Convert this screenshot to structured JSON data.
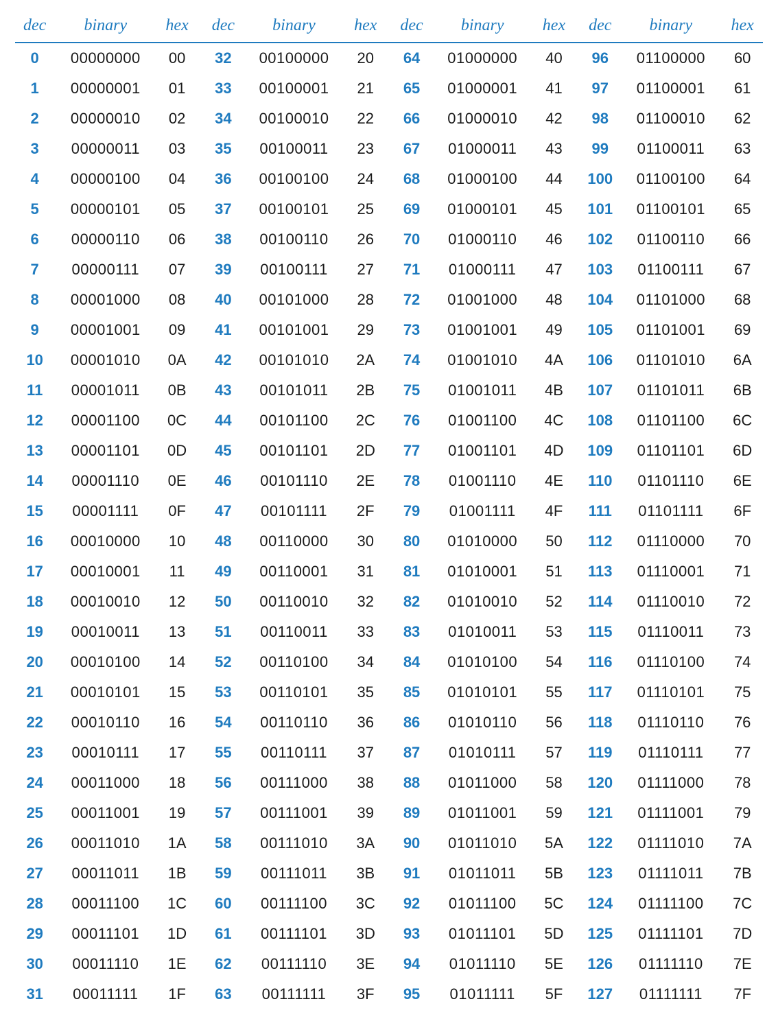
{
  "table": {
    "type": "table",
    "background_color": "#ffffff",
    "header_text_color": "#1f7bbf",
    "header_border_color": "#1f7bbf",
    "header_font_style": "italic",
    "header_font_family": "serif",
    "header_fontsize_pt": 18,
    "body_fontsize_pt": 16,
    "dec_text_color": "#1f7bbf",
    "dec_font_weight": "600",
    "data_text_color": "#1a1a1a",
    "column_groups": 4,
    "rows_per_group": 32,
    "headers": {
      "dec": "dec",
      "binary": "binary",
      "hex": "hex"
    },
    "groups": [
      {
        "rows": [
          {
            "dec": "0",
            "bin": "00000000",
            "hex": "00"
          },
          {
            "dec": "1",
            "bin": "00000001",
            "hex": "01"
          },
          {
            "dec": "2",
            "bin": "00000010",
            "hex": "02"
          },
          {
            "dec": "3",
            "bin": "00000011",
            "hex": "03"
          },
          {
            "dec": "4",
            "bin": "00000100",
            "hex": "04"
          },
          {
            "dec": "5",
            "bin": "00000101",
            "hex": "05"
          },
          {
            "dec": "6",
            "bin": "00000110",
            "hex": "06"
          },
          {
            "dec": "7",
            "bin": "00000111",
            "hex": "07"
          },
          {
            "dec": "8",
            "bin": "00001000",
            "hex": "08"
          },
          {
            "dec": "9",
            "bin": "00001001",
            "hex": "09"
          },
          {
            "dec": "10",
            "bin": "00001010",
            "hex": "0A"
          },
          {
            "dec": "11",
            "bin": "00001011",
            "hex": "0B"
          },
          {
            "dec": "12",
            "bin": "00001100",
            "hex": "0C"
          },
          {
            "dec": "13",
            "bin": "00001101",
            "hex": "0D"
          },
          {
            "dec": "14",
            "bin": "00001110",
            "hex": "0E"
          },
          {
            "dec": "15",
            "bin": "00001111",
            "hex": "0F"
          },
          {
            "dec": "16",
            "bin": "00010000",
            "hex": "10"
          },
          {
            "dec": "17",
            "bin": "00010001",
            "hex": "11"
          },
          {
            "dec": "18",
            "bin": "00010010",
            "hex": "12"
          },
          {
            "dec": "19",
            "bin": "00010011",
            "hex": "13"
          },
          {
            "dec": "20",
            "bin": "00010100",
            "hex": "14"
          },
          {
            "dec": "21",
            "bin": "00010101",
            "hex": "15"
          },
          {
            "dec": "22",
            "bin": "00010110",
            "hex": "16"
          },
          {
            "dec": "23",
            "bin": "00010111",
            "hex": "17"
          },
          {
            "dec": "24",
            "bin": "00011000",
            "hex": "18"
          },
          {
            "dec": "25",
            "bin": "00011001",
            "hex": "19"
          },
          {
            "dec": "26",
            "bin": "00011010",
            "hex": "1A"
          },
          {
            "dec": "27",
            "bin": "00011011",
            "hex": "1B"
          },
          {
            "dec": "28",
            "bin": "00011100",
            "hex": "1C"
          },
          {
            "dec": "29",
            "bin": "00011101",
            "hex": "1D"
          },
          {
            "dec": "30",
            "bin": "00011110",
            "hex": "1E"
          },
          {
            "dec": "31",
            "bin": "00011111",
            "hex": "1F"
          }
        ]
      },
      {
        "rows": [
          {
            "dec": "32",
            "bin": "00100000",
            "hex": "20"
          },
          {
            "dec": "33",
            "bin": "00100001",
            "hex": "21"
          },
          {
            "dec": "34",
            "bin": "00100010",
            "hex": "22"
          },
          {
            "dec": "35",
            "bin": "00100011",
            "hex": "23"
          },
          {
            "dec": "36",
            "bin": "00100100",
            "hex": "24"
          },
          {
            "dec": "37",
            "bin": "00100101",
            "hex": "25"
          },
          {
            "dec": "38",
            "bin": "00100110",
            "hex": "26"
          },
          {
            "dec": "39",
            "bin": "00100111",
            "hex": "27"
          },
          {
            "dec": "40",
            "bin": "00101000",
            "hex": "28"
          },
          {
            "dec": "41",
            "bin": "00101001",
            "hex": "29"
          },
          {
            "dec": "42",
            "bin": "00101010",
            "hex": "2A"
          },
          {
            "dec": "43",
            "bin": "00101011",
            "hex": "2B"
          },
          {
            "dec": "44",
            "bin": "00101100",
            "hex": "2C"
          },
          {
            "dec": "45",
            "bin": "00101101",
            "hex": "2D"
          },
          {
            "dec": "46",
            "bin": "00101110",
            "hex": "2E"
          },
          {
            "dec": "47",
            "bin": "00101111",
            "hex": "2F"
          },
          {
            "dec": "48",
            "bin": "00110000",
            "hex": "30"
          },
          {
            "dec": "49",
            "bin": "00110001",
            "hex": "31"
          },
          {
            "dec": "50",
            "bin": "00110010",
            "hex": "32"
          },
          {
            "dec": "51",
            "bin": "00110011",
            "hex": "33"
          },
          {
            "dec": "52",
            "bin": "00110100",
            "hex": "34"
          },
          {
            "dec": "53",
            "bin": "00110101",
            "hex": "35"
          },
          {
            "dec": "54",
            "bin": "00110110",
            "hex": "36"
          },
          {
            "dec": "55",
            "bin": "00110111",
            "hex": "37"
          },
          {
            "dec": "56",
            "bin": "00111000",
            "hex": "38"
          },
          {
            "dec": "57",
            "bin": "00111001",
            "hex": "39"
          },
          {
            "dec": "58",
            "bin": "00111010",
            "hex": "3A"
          },
          {
            "dec": "59",
            "bin": "00111011",
            "hex": "3B"
          },
          {
            "dec": "60",
            "bin": "00111100",
            "hex": "3C"
          },
          {
            "dec": "61",
            "bin": "00111101",
            "hex": "3D"
          },
          {
            "dec": "62",
            "bin": "00111110",
            "hex": "3E"
          },
          {
            "dec": "63",
            "bin": "00111111",
            "hex": "3F"
          }
        ]
      },
      {
        "rows": [
          {
            "dec": "64",
            "bin": "01000000",
            "hex": "40"
          },
          {
            "dec": "65",
            "bin": "01000001",
            "hex": "41"
          },
          {
            "dec": "66",
            "bin": "01000010",
            "hex": "42"
          },
          {
            "dec": "67",
            "bin": "01000011",
            "hex": "43"
          },
          {
            "dec": "68",
            "bin": "01000100",
            "hex": "44"
          },
          {
            "dec": "69",
            "bin": "01000101",
            "hex": "45"
          },
          {
            "dec": "70",
            "bin": "01000110",
            "hex": "46"
          },
          {
            "dec": "71",
            "bin": "01000111",
            "hex": "47"
          },
          {
            "dec": "72",
            "bin": "01001000",
            "hex": "48"
          },
          {
            "dec": "73",
            "bin": "01001001",
            "hex": "49"
          },
          {
            "dec": "74",
            "bin": "01001010",
            "hex": "4A"
          },
          {
            "dec": "75",
            "bin": "01001011",
            "hex": "4B"
          },
          {
            "dec": "76",
            "bin": "01001100",
            "hex": "4C"
          },
          {
            "dec": "77",
            "bin": "01001101",
            "hex": "4D"
          },
          {
            "dec": "78",
            "bin": "01001110",
            "hex": "4E"
          },
          {
            "dec": "79",
            "bin": "01001111",
            "hex": "4F"
          },
          {
            "dec": "80",
            "bin": "01010000",
            "hex": "50"
          },
          {
            "dec": "81",
            "bin": "01010001",
            "hex": "51"
          },
          {
            "dec": "82",
            "bin": "01010010",
            "hex": "52"
          },
          {
            "dec": "83",
            "bin": "01010011",
            "hex": "53"
          },
          {
            "dec": "84",
            "bin": "01010100",
            "hex": "54"
          },
          {
            "dec": "85",
            "bin": "01010101",
            "hex": "55"
          },
          {
            "dec": "86",
            "bin": "01010110",
            "hex": "56"
          },
          {
            "dec": "87",
            "bin": "01010111",
            "hex": "57"
          },
          {
            "dec": "88",
            "bin": "01011000",
            "hex": "58"
          },
          {
            "dec": "89",
            "bin": "01011001",
            "hex": "59"
          },
          {
            "dec": "90",
            "bin": "01011010",
            "hex": "5A"
          },
          {
            "dec": "91",
            "bin": "01011011",
            "hex": "5B"
          },
          {
            "dec": "92",
            "bin": "01011100",
            "hex": "5C"
          },
          {
            "dec": "93",
            "bin": "01011101",
            "hex": "5D"
          },
          {
            "dec": "94",
            "bin": "01011110",
            "hex": "5E"
          },
          {
            "dec": "95",
            "bin": "01011111",
            "hex": "5F"
          }
        ]
      },
      {
        "rows": [
          {
            "dec": "96",
            "bin": "01100000",
            "hex": "60"
          },
          {
            "dec": "97",
            "bin": "01100001",
            "hex": "61"
          },
          {
            "dec": "98",
            "bin": "01100010",
            "hex": "62"
          },
          {
            "dec": "99",
            "bin": "01100011",
            "hex": "63"
          },
          {
            "dec": "100",
            "bin": "01100100",
            "hex": "64"
          },
          {
            "dec": "101",
            "bin": "01100101",
            "hex": "65"
          },
          {
            "dec": "102",
            "bin": "01100110",
            "hex": "66"
          },
          {
            "dec": "103",
            "bin": "01100111",
            "hex": "67"
          },
          {
            "dec": "104",
            "bin": "01101000",
            "hex": "68"
          },
          {
            "dec": "105",
            "bin": "01101001",
            "hex": "69"
          },
          {
            "dec": "106",
            "bin": "01101010",
            "hex": "6A"
          },
          {
            "dec": "107",
            "bin": "01101011",
            "hex": "6B"
          },
          {
            "dec": "108",
            "bin": "01101100",
            "hex": "6C"
          },
          {
            "dec": "109",
            "bin": "01101101",
            "hex": "6D"
          },
          {
            "dec": "110",
            "bin": "01101110",
            "hex": "6E"
          },
          {
            "dec": "111",
            "bin": "01101111",
            "hex": "6F"
          },
          {
            "dec": "112",
            "bin": "01110000",
            "hex": "70"
          },
          {
            "dec": "113",
            "bin": "01110001",
            "hex": "71"
          },
          {
            "dec": "114",
            "bin": "01110010",
            "hex": "72"
          },
          {
            "dec": "115",
            "bin": "01110011",
            "hex": "73"
          },
          {
            "dec": "116",
            "bin": "01110100",
            "hex": "74"
          },
          {
            "dec": "117",
            "bin": "01110101",
            "hex": "75"
          },
          {
            "dec": "118",
            "bin": "01110110",
            "hex": "76"
          },
          {
            "dec": "119",
            "bin": "01110111",
            "hex": "77"
          },
          {
            "dec": "120",
            "bin": "01111000",
            "hex": "78"
          },
          {
            "dec": "121",
            "bin": "01111001",
            "hex": "79"
          },
          {
            "dec": "122",
            "bin": "01111010",
            "hex": "7A"
          },
          {
            "dec": "123",
            "bin": "01111011",
            "hex": "7B"
          },
          {
            "dec": "124",
            "bin": "01111100",
            "hex": "7C"
          },
          {
            "dec": "125",
            "bin": "01111101",
            "hex": "7D"
          },
          {
            "dec": "126",
            "bin": "01111110",
            "hex": "7E"
          },
          {
            "dec": "127",
            "bin": "01111111",
            "hex": "7F"
          }
        ]
      }
    ]
  }
}
